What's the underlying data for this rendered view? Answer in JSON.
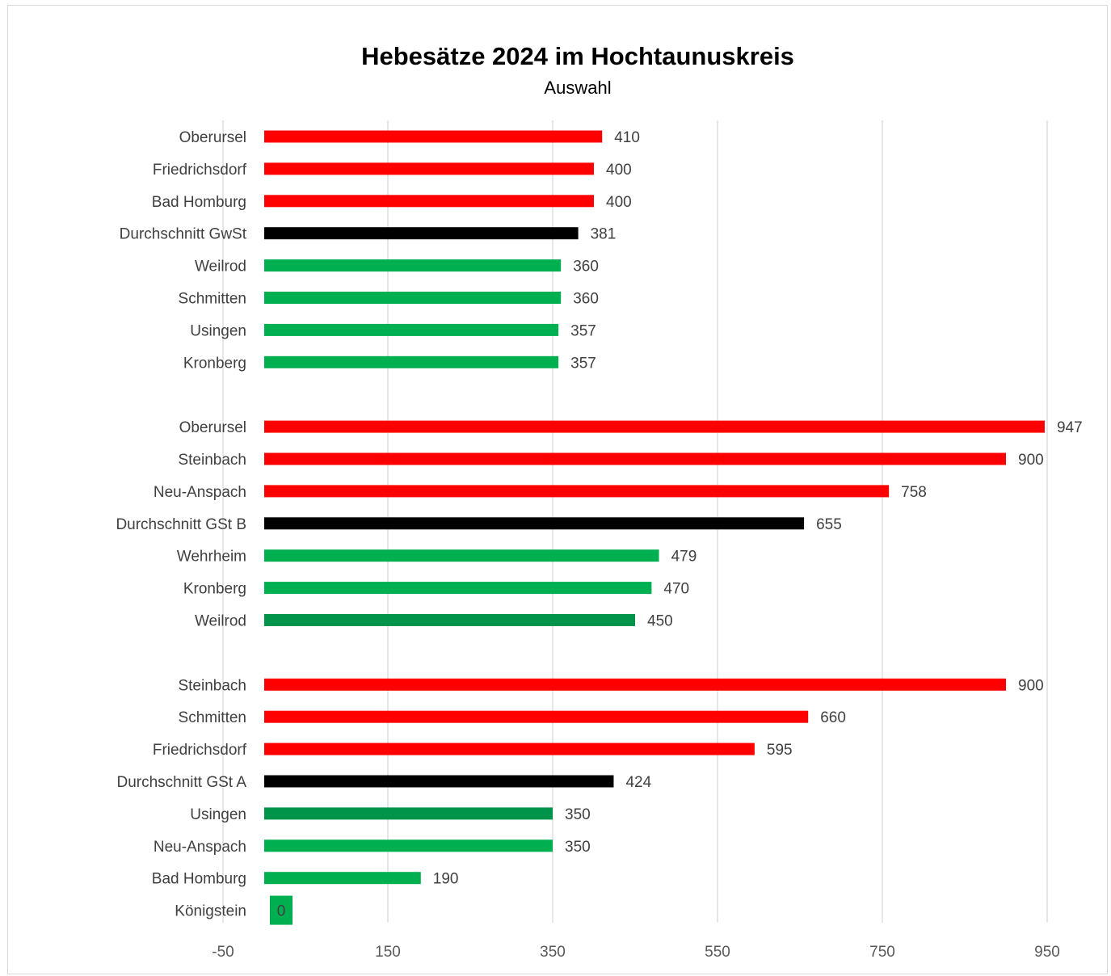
{
  "colors": {
    "high": "#ff0000",
    "average": "#000000",
    "low": "#00b050",
    "low_dark": "#00934a",
    "grid": "#d9d9d9"
  },
  "chart_data": {
    "type": "bar",
    "orientation": "horizontal",
    "title": "Hebesätze 2024 im Hochtaunuskreis",
    "subtitle": "Auswahl",
    "xlim": [
      -50,
      950
    ],
    "xticks": [
      "-50",
      "150",
      "350",
      "550",
      "750",
      "950"
    ],
    "xtick_values": [
      -50,
      150,
      350,
      550,
      750,
      950
    ],
    "grid": true,
    "legend": "none",
    "groups": [
      {
        "bars": [
          {
            "label": "Oberursel",
            "value": 410,
            "display": "410",
            "color": "high"
          },
          {
            "label": "Friedrichsdorf",
            "value": 400,
            "display": "400",
            "color": "high"
          },
          {
            "label": "Bad Homburg",
            "value": 400,
            "display": "400",
            "color": "high"
          },
          {
            "label": "Durchschnitt GwSt",
            "value": 381,
            "display": "381",
            "color": "average"
          },
          {
            "label": "Weilrod",
            "value": 360,
            "display": "360",
            "color": "low"
          },
          {
            "label": "Schmitten",
            "value": 360,
            "display": "360",
            "color": "low"
          },
          {
            "label": "Usingen",
            "value": 357,
            "display": "357",
            "color": "low"
          },
          {
            "label": "Kronberg",
            "value": 357,
            "display": "357",
            "color": "low"
          }
        ]
      },
      {
        "bars": [
          {
            "label": "Oberursel",
            "value": 947,
            "display": "947",
            "color": "high"
          },
          {
            "label": "Steinbach",
            "value": 900,
            "display": "900",
            "color": "high"
          },
          {
            "label": "Neu-Anspach",
            "value": 758,
            "display": "758",
            "color": "high"
          },
          {
            "label": "Durchschnitt GSt B",
            "value": 655,
            "display": "655",
            "color": "average"
          },
          {
            "label": "Wehrheim",
            "value": 479,
            "display": "479",
            "color": "low"
          },
          {
            "label": "Kronberg",
            "value": 470,
            "display": "470",
            "color": "low"
          },
          {
            "label": "Weilrod",
            "value": 450,
            "display": "450",
            "color": "low_dark"
          }
        ]
      },
      {
        "bars": [
          {
            "label": "Steinbach",
            "value": 900,
            "display": "900",
            "color": "high"
          },
          {
            "label": "Schmitten",
            "value": 660,
            "display": "660",
            "color": "high"
          },
          {
            "label": "Friedrichsdorf",
            "value": 595,
            "display": "595",
            "color": "high"
          },
          {
            "label": "Durchschnitt GSt A",
            "value": 424,
            "display": "424",
            "color": "average"
          },
          {
            "label": "Usingen",
            "value": 350,
            "display": "350",
            "color": "low_dark"
          },
          {
            "label": "Neu-Anspach",
            "value": 350,
            "display": "350",
            "color": "low"
          },
          {
            "label": "Bad Homburg",
            "value": 190,
            "display": "190",
            "color": "low"
          },
          {
            "label": "Königstein",
            "value": 0,
            "display": "0",
            "color": "low"
          }
        ]
      }
    ]
  }
}
